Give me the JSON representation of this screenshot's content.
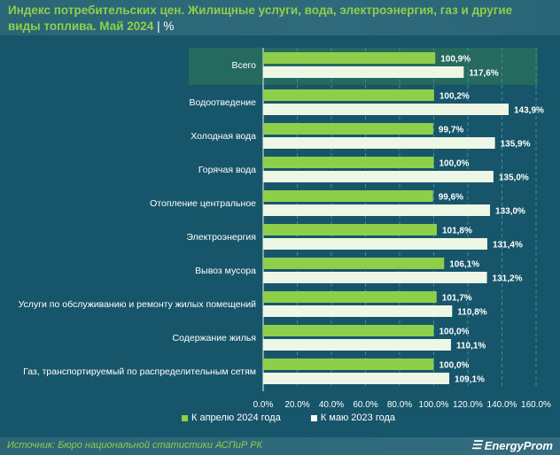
{
  "title": "Индекс потребительских цен. Жилищные услуги, вода, электроэнергия, газ и другие виды топлива. Май 2024",
  "unit": "%",
  "source": "Источник: Бюро национальной статистики АСПиР РК",
  "logo": "EnergyProm",
  "colors": {
    "series1": "#8ecf4a",
    "series2": "#eef7e6",
    "highlight": "#26695f"
  },
  "chart_data": {
    "type": "bar",
    "orientation": "horizontal",
    "categories": [
      "Всего",
      "Водоотведение",
      "Холодная вода",
      "Горячая вода",
      "Отопление центральное",
      "Электроэнергия",
      "Вывоз мусора",
      "Услуги по обслуживанию и ремонту жилых помещений",
      "Содержание жилья",
      "Газ, транспортируемый по распределительным сетям"
    ],
    "series": [
      {
        "name": "К апрелю 2024 года",
        "values": [
          100.9,
          100.2,
          99.7,
          100.0,
          99.6,
          101.8,
          106.1,
          101.7,
          100.0,
          100.0
        ],
        "labels": [
          "100,9%",
          "100,2%",
          "99,7%",
          "100,0%",
          "99,6%",
          "101,8%",
          "106,1%",
          "101,7%",
          "100,0%",
          "100,0%"
        ]
      },
      {
        "name": "К маю 2023 года",
        "values": [
          117.6,
          143.9,
          135.9,
          135.0,
          133.0,
          131.4,
          131.2,
          110.8,
          110.1,
          109.1
        ],
        "labels": [
          "117,6%",
          "143,9%",
          "135,9%",
          "135,0%",
          "133,0%",
          "131,4%",
          "131,2%",
          "110,8%",
          "110,1%",
          "109,1%"
        ]
      }
    ],
    "xlim": [
      0,
      160
    ],
    "xticks": [
      "0,0%",
      "20,0%",
      "40,0%",
      "60,0%",
      "80,0%",
      "100,0%",
      "120,0%",
      "140,0%",
      "160,0%"
    ],
    "grid": true,
    "legend": "bottom"
  }
}
